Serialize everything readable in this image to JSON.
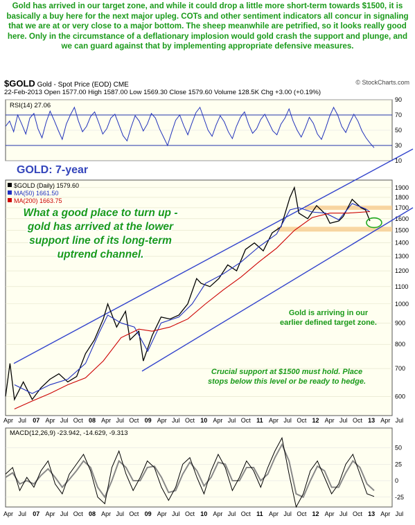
{
  "intro_text": "Gold has arrived in our target zone, and while it could drop a little more short-term towards $1500, it is basically a buy here for the next major upleg. COTs and other sentiment indicators all concur in signaling that we are at or very close to a major bottom. The sheep meanwhile are petrified, so it looks really good here. Only in the circumstance of a deflationary implosion would gold crash the support and plunge, and we can guard against that by implementing appropriate defensive measures.",
  "header": {
    "symbol": "$GOLD",
    "name": "Gold - Spot Price (EOD)",
    "exchange": "CME",
    "quote": "22-Feb-2013  Open 1577.00  High 1587.00  Low 1569.30  Close 1579.60  Volume 128.5K  Chg +3.00 (+0.19%)",
    "source": "© StockCharts.com"
  },
  "chart_data": [
    {
      "type": "line",
      "panel": "RSI",
      "label": "RSI(14) 27.06",
      "ylim": [
        10,
        90
      ],
      "yticks": [
        10,
        30,
        50,
        70,
        90
      ],
      "reference_lines": [
        30,
        70
      ],
      "last_value": 27.06,
      "series": [
        {
          "values": [
            55,
            62,
            48,
            70,
            58,
            45,
            66,
            72,
            52,
            40,
            60,
            75,
            63,
            50,
            38,
            58,
            70,
            80,
            62,
            48,
            55,
            68,
            74,
            60,
            45,
            52,
            66,
            71,
            57,
            43,
            36,
            54,
            69,
            62,
            49,
            58,
            72,
            66,
            52,
            41,
            30,
            47,
            63,
            70,
            56,
            44,
            59,
            73,
            80,
            65,
            50,
            42,
            57,
            69,
            61,
            48,
            39,
            55,
            67,
            74,
            58,
            46,
            52,
            64,
            71,
            60,
            49,
            44,
            58,
            66,
            78,
            62,
            50,
            41,
            53,
            67,
            59,
            45,
            38,
            52,
            68,
            80,
            70,
            55,
            47,
            60,
            71,
            62,
            49,
            40,
            33,
            27
          ]
        }
      ]
    },
    {
      "type": "line",
      "panel": "price",
      "title": "GOLD: 7-year",
      "ylim": [
        540,
        1980
      ],
      "log_scale": true,
      "yticks": [
        600,
        700,
        800,
        900,
        1000,
        1100,
        1200,
        1300,
        1400,
        1500,
        1600,
        1700,
        1800,
        1900
      ],
      "xticks": [
        "Apr",
        "Jul",
        "07",
        "Apr",
        "Jul",
        "Oct",
        "08",
        "Apr",
        "Jul",
        "Oct",
        "09",
        "Apr",
        "Jul",
        "Oct",
        "10",
        "Apr",
        "Jul",
        "Oct",
        "11",
        "Apr",
        "Jul",
        "Oct",
        "12",
        "Apr",
        "Jul",
        "Oct",
        "13",
        "Apr",
        "Jul"
      ],
      "x_range": [
        "2006-04",
        "2013-07"
      ],
      "legend": [
        {
          "label": "$GOLD (Daily) 1579.60",
          "color": "#000000"
        },
        {
          "label": "MA(50) 1661.50",
          "color": "#1f2fbf"
        },
        {
          "label": "MA(200) 1663.75",
          "color": "#cc0000"
        }
      ],
      "series": [
        {
          "name": "$GOLD (Daily)",
          "color": "#000000",
          "x": [
            "2006-04",
            "2006-05",
            "2006-06",
            "2006-08",
            "2006-10",
            "2006-12",
            "2007-02",
            "2007-04",
            "2007-06",
            "2007-08",
            "2007-10",
            "2007-12",
            "2008-02",
            "2008-03",
            "2008-05",
            "2008-07",
            "2008-08",
            "2008-10",
            "2008-11",
            "2009-01",
            "2009-03",
            "2009-05",
            "2009-07",
            "2009-09",
            "2009-11",
            "2009-12",
            "2010-02",
            "2010-04",
            "2010-06",
            "2010-08",
            "2010-10",
            "2010-12",
            "2011-02",
            "2011-04",
            "2011-06",
            "2011-08",
            "2011-09",
            "2011-10",
            "2011-12",
            "2012-02",
            "2012-04",
            "2012-05",
            "2012-07",
            "2012-08",
            "2012-10",
            "2012-12",
            "2013-01",
            "2013-02"
          ],
          "values": [
            600,
            720,
            590,
            650,
            590,
            630,
            660,
            680,
            650,
            670,
            760,
            820,
            920,
            1000,
            880,
            960,
            820,
            860,
            730,
            840,
            930,
            920,
            940,
            1000,
            1150,
            1120,
            1100,
            1150,
            1240,
            1200,
            1350,
            1400,
            1340,
            1480,
            1530,
            1800,
            1900,
            1650,
            1600,
            1720,
            1640,
            1560,
            1580,
            1620,
            1780,
            1700,
            1680,
            1580
          ]
        },
        {
          "name": "MA(50)",
          "color": "#1f2fbf",
          "x": [
            "2006-06",
            "2006-10",
            "2007-02",
            "2007-06",
            "2007-10",
            "2008-01",
            "2008-03",
            "2008-06",
            "2008-09",
            "2008-12",
            "2009-03",
            "2009-07",
            "2009-10",
            "2010-01",
            "2010-05",
            "2010-09",
            "2011-01",
            "2011-05",
            "2011-08",
            "2011-10",
            "2012-01",
            "2012-04",
            "2012-07",
            "2012-10",
            "2013-01",
            "2013-02"
          ],
          "values": [
            640,
            610,
            640,
            660,
            720,
            850,
            940,
            900,
            880,
            770,
            900,
            930,
            1000,
            1120,
            1180,
            1260,
            1370,
            1470,
            1680,
            1700,
            1660,
            1650,
            1590,
            1740,
            1690,
            1661
          ]
        },
        {
          "name": "MA(200)",
          "color": "#cc0000",
          "x": [
            "2006-06",
            "2006-10",
            "2007-02",
            "2007-06",
            "2007-10",
            "2008-02",
            "2008-06",
            "2008-10",
            "2009-01",
            "2009-05",
            "2009-09",
            "2010-01",
            "2010-05",
            "2010-09",
            "2011-01",
            "2011-05",
            "2011-09",
            "2012-01",
            "2012-05",
            "2012-09",
            "2013-02"
          ],
          "values": [
            560,
            585,
            610,
            640,
            665,
            730,
            830,
            870,
            860,
            880,
            920,
            1000,
            1080,
            1160,
            1260,
            1360,
            1500,
            1610,
            1650,
            1650,
            1664
          ]
        }
      ],
      "annotations": [
        "What a good place to turn up - gold has arrived at the lower support line of its long-term uptrend channel.",
        "Gold is arriving in  our earlier defined target zone.",
        "Crucial support at $1500 must hold. Place stops below this level or be ready to hedge."
      ]
    },
    {
      "type": "line",
      "panel": "MACD",
      "label": "MACD(12,26,9) -23.942, -14.629, -9.313",
      "ylim": [
        -40,
        80
      ],
      "yticks": [
        -25,
        0,
        25,
        50
      ],
      "series": [
        {
          "name": "MACD",
          "color": "#000000",
          "values": [
            10,
            20,
            -15,
            5,
            -10,
            15,
            30,
            -5,
            -20,
            10,
            25,
            40,
            15,
            -25,
            -35,
            20,
            45,
            10,
            -15,
            5,
            30,
            20,
            -10,
            -30,
            -10,
            25,
            35,
            5,
            -20,
            15,
            40,
            20,
            -15,
            5,
            30,
            15,
            -10,
            20,
            45,
            65,
            10,
            -40,
            -20,
            15,
            30,
            5,
            -20,
            -5,
            25,
            40,
            10,
            -20,
            -24
          ]
        },
        {
          "name": "Signal",
          "color": "#888888",
          "values": [
            5,
            12,
            -5,
            0,
            -5,
            8,
            18,
            5,
            -10,
            2,
            15,
            30,
            20,
            -10,
            -25,
            0,
            30,
            20,
            0,
            0,
            20,
            22,
            5,
            -18,
            -15,
            10,
            28,
            15,
            -8,
            5,
            28,
            25,
            0,
            0,
            20,
            20,
            0,
            10,
            35,
            55,
            30,
            -20,
            -25,
            0,
            22,
            15,
            -10,
            -10,
            12,
            30,
            20,
            -5,
            -15
          ]
        }
      ]
    }
  ]
}
